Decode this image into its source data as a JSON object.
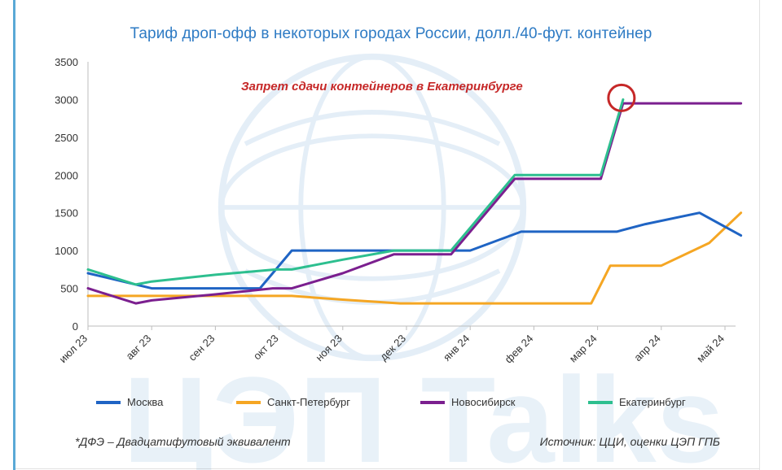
{
  "chart_data": {
    "type": "line",
    "title": "Тариф дроп-офф в некоторых городах России, долл./40-фут. контейнер",
    "xlabel": "",
    "ylabel": "",
    "x_tick_labels": [
      "июл 23",
      "авг 23",
      "сен 23",
      "окт 23",
      "ноя 23",
      "дек 23",
      "янв 24",
      "фев 24",
      "мар 24",
      "апр 24",
      "май 24"
    ],
    "y_ticks": [
      0,
      500,
      1000,
      1500,
      2000,
      2500,
      3000,
      3500
    ],
    "ylim": [
      0,
      3500
    ],
    "xlim": [
      0,
      10.25
    ],
    "grid": false,
    "legend_position": "bottom",
    "series": [
      {
        "name": "Москва",
        "color": "#1f64c4",
        "x": [
          0,
          1,
          2,
          2.7,
          3.2,
          4,
          5,
          6,
          6.8,
          7.5,
          8.3,
          8.75,
          9.6,
          10.25
        ],
        "y": [
          700,
          500,
          500,
          500,
          1000,
          1000,
          1000,
          1000,
          1250,
          1250,
          1250,
          1350,
          1500,
          1200
        ],
        "values": [
          700,
          500,
          500,
          500,
          1000,
          1000,
          1000,
          1000,
          1250,
          1250,
          1250,
          1350,
          1500,
          1200
        ]
      },
      {
        "name": "Санкт-Петербург",
        "color": "#f5a623",
        "x": [
          0,
          1,
          2,
          3.2,
          4,
          4.9,
          6,
          7,
          7.9,
          8.2,
          8.7,
          9.0,
          9.75,
          10.25
        ],
        "y": [
          400,
          400,
          400,
          400,
          350,
          300,
          300,
          300,
          300,
          800,
          800,
          800,
          1100,
          1500
        ],
        "values": [
          400,
          400,
          400,
          400,
          350,
          300,
          300,
          300,
          300,
          800,
          800,
          800,
          1100,
          1500
        ]
      },
      {
        "name": "Новосибирск",
        "color": "#7b1f8f",
        "x": [
          0,
          0.75,
          1,
          2,
          2.9,
          3.2,
          4,
          4.8,
          5.7,
          6.7,
          7.2,
          8.05,
          8.4,
          9,
          10.25
        ],
        "y": [
          500,
          300,
          340,
          420,
          500,
          500,
          700,
          950,
          950,
          1950,
          1950,
          1950,
          2950,
          2950,
          2950
        ],
        "values": [
          500,
          300,
          340,
          420,
          500,
          500,
          700,
          950,
          950,
          1950,
          1950,
          1950,
          2950,
          2950,
          2950
        ]
      },
      {
        "name": "Екатеринбург",
        "color": "#2dbf8f",
        "x": [
          0,
          0.75,
          1,
          2,
          2.95,
          3.2,
          4,
          4.8,
          5.7,
          6.7,
          7.2,
          8.05,
          8.4
        ],
        "y": [
          750,
          550,
          590,
          680,
          750,
          750,
          880,
          1000,
          1000,
          2000,
          2000,
          2000,
          3000
        ],
        "values": [
          750,
          550,
          590,
          680,
          750,
          750,
          880,
          1000,
          1000,
          2000,
          2000,
          2000,
          3000
        ]
      }
    ],
    "annotations": [
      {
        "text": "Запрет сдачи контейнеров в Екатеринбурге",
        "color": "#c62828",
        "marker": "circle",
        "x": 8.4,
        "y": 3000
      }
    ]
  },
  "footnote": "*ДФЭ – Двадцатифутовый эквивалент",
  "source": "Источник: ЦЦИ, оценки ЦЭП ГПБ",
  "watermark": "ЦЭП Talks",
  "colors": {
    "title": "#2e7bc4",
    "frame_accent": "#5aa9d6",
    "annotation": "#c62828"
  }
}
